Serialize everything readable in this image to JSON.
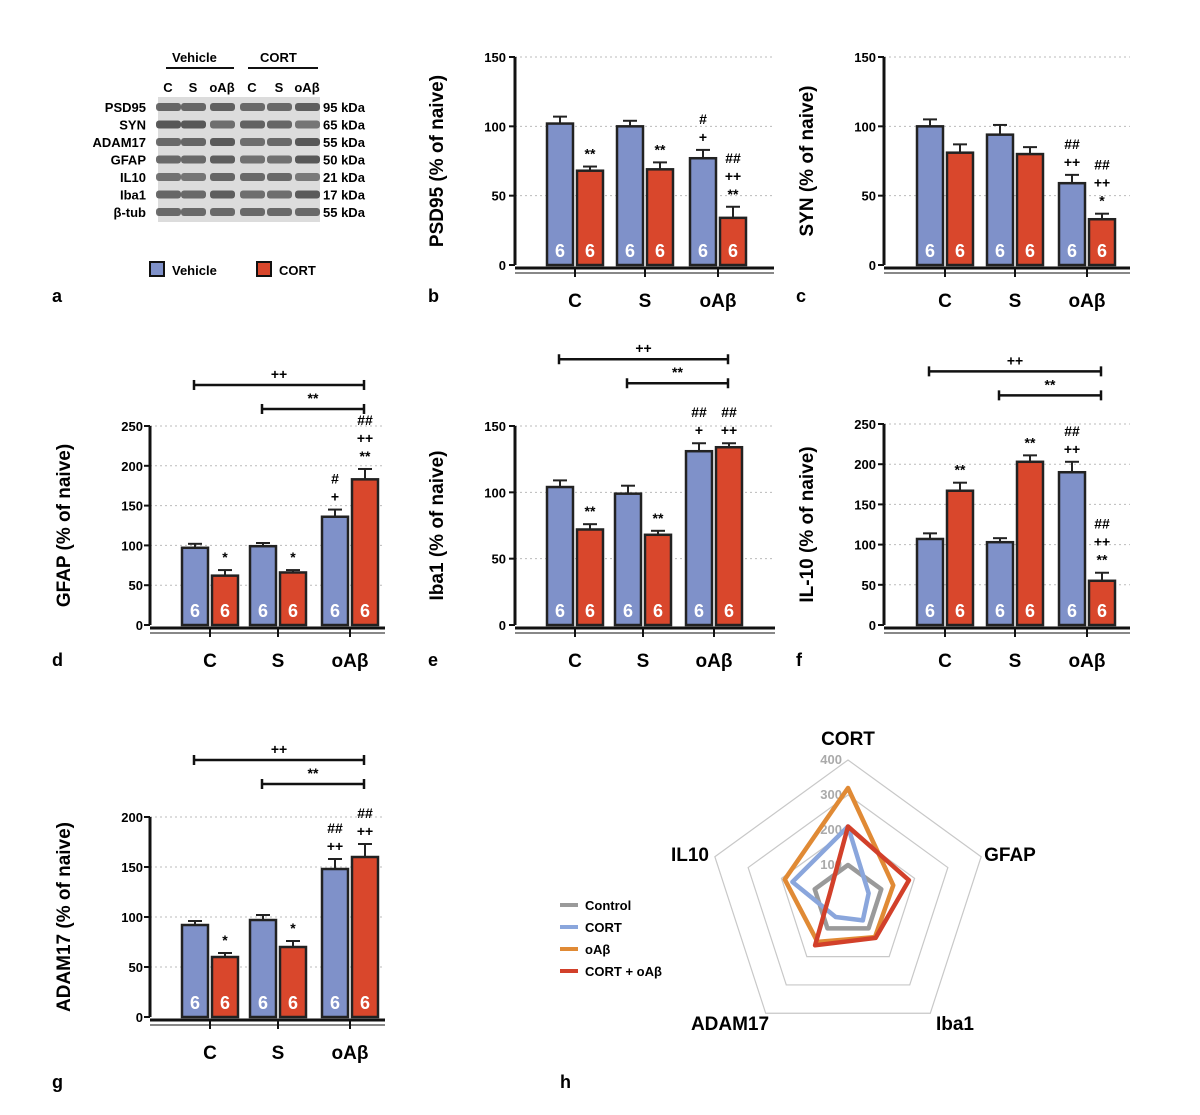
{
  "colors": {
    "vehicle": "#7f91c9",
    "cort": "#d9472c",
    "control_line": "#9a9a9a",
    "cort_line": "#8aa6dc",
    "oab_line": "#e08a35",
    "cort_oab_line": "#d2402a"
  },
  "panel_labels": [
    "a",
    "b",
    "c",
    "d",
    "e",
    "f",
    "g",
    "h"
  ],
  "western_blot": {
    "group_labels": [
      "Vehicle",
      "CORT"
    ],
    "lane_labels": [
      "C",
      "S",
      "oAβ",
      "C",
      "S",
      "oAβ"
    ],
    "proteins": [
      "PSD95",
      "SYN",
      "ADAM17",
      "GFAP",
      "IL10",
      "Iba1",
      "β-tub"
    ],
    "sizes": [
      "95 kDa",
      "65 kDa",
      "55 kDa",
      "50 kDa",
      "21 kDa",
      "17 kDa",
      "55 kDa"
    ],
    "legend": [
      "Vehicle",
      "CORT"
    ]
  },
  "chart_data": [
    {
      "panel": "b",
      "type": "bar",
      "ylabel": "PSD95 (% of naive)",
      "categories": [
        "C",
        "S",
        "oAβ"
      ],
      "ylim": [
        0,
        150
      ],
      "yticks": [
        0,
        50,
        100,
        150
      ],
      "series": [
        {
          "name": "Vehicle",
          "values": [
            102,
            100,
            77
          ],
          "errors": [
            5,
            4,
            6
          ],
          "n": [
            6,
            6,
            6
          ],
          "labels": [
            "",
            "",
            "#\n+"
          ]
        },
        {
          "name": "CORT",
          "values": [
            68,
            69,
            34
          ],
          "errors": [
            3,
            5,
            8
          ],
          "n": [
            6,
            6,
            6
          ],
          "labels": [
            "**",
            "**",
            "##\n++\n**"
          ]
        }
      ]
    },
    {
      "panel": "c",
      "type": "bar",
      "ylabel": "SYN (% of naive)",
      "categories": [
        "C",
        "S",
        "oAβ"
      ],
      "ylim": [
        0,
        150
      ],
      "yticks": [
        0,
        50,
        100,
        150
      ],
      "series": [
        {
          "name": "Vehicle",
          "values": [
            100,
            94,
            59
          ],
          "errors": [
            5,
            7,
            6
          ],
          "n": [
            6,
            6,
            6
          ],
          "labels": [
            "",
            "",
            "##\n++"
          ]
        },
        {
          "name": "CORT",
          "values": [
            81,
            80,
            33
          ],
          "errors": [
            6,
            5,
            4
          ],
          "n": [
            6,
            6,
            6
          ],
          "labels": [
            "",
            "",
            "##\n++\n*"
          ]
        }
      ]
    },
    {
      "panel": "d",
      "type": "bar",
      "ylabel": "GFAP (% of naive)",
      "categories": [
        "C",
        "S",
        "oAβ"
      ],
      "ylim": [
        0,
        250
      ],
      "yticks": [
        0,
        50,
        100,
        150,
        200,
        250
      ],
      "series": [
        {
          "name": "Vehicle",
          "values": [
            97,
            99,
            136
          ],
          "errors": [
            5,
            4,
            9
          ],
          "n": [
            6,
            6,
            6
          ],
          "labels": [
            "",
            "",
            "#\n+"
          ]
        },
        {
          "name": "CORT",
          "values": [
            62,
            66,
            183
          ],
          "errors": [
            7,
            3,
            13
          ],
          "n": [
            6,
            6,
            6
          ],
          "labels": [
            "*",
            "*",
            "##\n++\n**"
          ]
        }
      ],
      "brackets": [
        {
          "from": "C",
          "to": "oAβ",
          "label": "++"
        },
        {
          "from": "S",
          "to": "oAβ",
          "label": "**"
        }
      ]
    },
    {
      "panel": "e",
      "type": "bar",
      "ylabel": "Iba1 (% of naive)",
      "categories": [
        "C",
        "S",
        "oAβ"
      ],
      "ylim": [
        0,
        150
      ],
      "yticks": [
        0,
        50,
        100,
        150
      ],
      "series": [
        {
          "name": "Vehicle",
          "values": [
            104,
            99,
            131
          ],
          "errors": [
            5,
            6,
            6
          ],
          "n": [
            6,
            6,
            6
          ],
          "labels": [
            "",
            "",
            "##\n+"
          ]
        },
        {
          "name": "CORT",
          "values": [
            72,
            68,
            134
          ],
          "errors": [
            4,
            3,
            3
          ],
          "n": [
            6,
            6,
            6
          ],
          "labels": [
            "**",
            "**",
            "##\n++"
          ]
        }
      ],
      "brackets": [
        {
          "from": "C",
          "to": "oAβ",
          "label": "++"
        },
        {
          "from": "S",
          "to": "oAβ",
          "label": "**"
        }
      ]
    },
    {
      "panel": "f",
      "type": "bar",
      "ylabel": "IL-10 (% of naive)",
      "categories": [
        "C",
        "S",
        "oAβ"
      ],
      "ylim": [
        0,
        250
      ],
      "yticks": [
        0,
        50,
        100,
        150,
        200,
        250
      ],
      "series": [
        {
          "name": "Vehicle",
          "values": [
            107,
            103,
            190
          ],
          "errors": [
            7,
            5,
            13
          ],
          "n": [
            6,
            6,
            6
          ],
          "labels": [
            "",
            "",
            "##\n++"
          ]
        },
        {
          "name": "CORT",
          "values": [
            167,
            203,
            55
          ],
          "errors": [
            10,
            8,
            10
          ],
          "n": [
            6,
            6,
            6
          ],
          "labels": [
            "**",
            "**",
            "##\n++\n**"
          ]
        }
      ],
      "brackets": [
        {
          "from": "C",
          "to": "oAβ",
          "label": "++"
        },
        {
          "from": "S",
          "to": "oAβ",
          "label": "**"
        }
      ]
    },
    {
      "panel": "g",
      "type": "bar",
      "ylabel": "ADAM17 (% of naive)",
      "categories": [
        "C",
        "S",
        "oAβ"
      ],
      "ylim": [
        0,
        200
      ],
      "yticks": [
        0,
        50,
        100,
        150,
        200
      ],
      "series": [
        {
          "name": "Vehicle",
          "values": [
            92,
            97,
            148
          ],
          "errors": [
            4,
            5,
            10
          ],
          "n": [
            6,
            6,
            6
          ],
          "labels": [
            "",
            "",
            "##\n++"
          ]
        },
        {
          "name": "CORT",
          "values": [
            60,
            70,
            160
          ],
          "errors": [
            4,
            6,
            13
          ],
          "n": [
            6,
            6,
            6
          ],
          "labels": [
            "*",
            "*",
            "##\n++"
          ]
        }
      ],
      "brackets": [
        {
          "from": "C",
          "to": "oAβ",
          "label": "++"
        },
        {
          "from": "S",
          "to": "oAβ",
          "label": "**"
        }
      ]
    },
    {
      "panel": "h",
      "type": "radar",
      "axes": [
        "CORT",
        "GFAP",
        "Iba1",
        "ADAM17",
        "IL10"
      ],
      "rmax": 400,
      "rticks": [
        100,
        200,
        300,
        400
      ],
      "series": [
        {
          "name": "Control",
          "values": [
            100,
            100,
            100,
            100,
            100
          ]
        },
        {
          "name": "CORT",
          "values": [
            210,
            62,
            72,
            60,
            167
          ]
        },
        {
          "name": "oAβ",
          "values": [
            320,
            136,
            131,
            148,
            190
          ]
        },
        {
          "name": "CORT + oAβ",
          "values": [
            210,
            183,
            134,
            160,
            55
          ]
        }
      ]
    }
  ]
}
